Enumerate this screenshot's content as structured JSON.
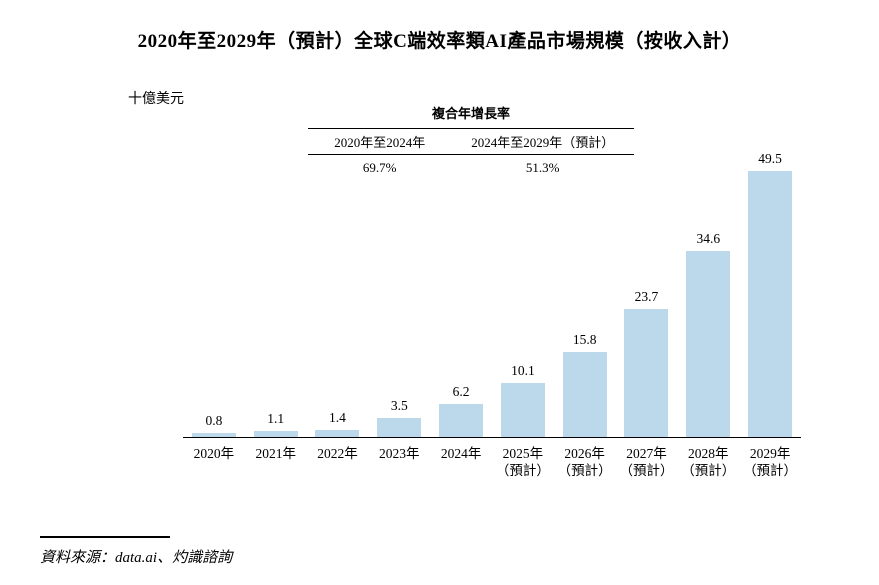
{
  "page": {
    "title": "2020年至2029年（預計）全球C端效率類AI產品市場規模（按收入計）",
    "source": "資料來源：data.ai、灼識諮詢"
  },
  "cagr": {
    "title": "複合年增長率",
    "columns": [
      {
        "period": "2020年至2024年",
        "value": "69.7%"
      },
      {
        "period": "2024年至2029年（預計）",
        "value": "51.3%"
      }
    ]
  },
  "chart_data": {
    "type": "bar",
    "title": "2020年至2029年（預計）全球C端效率類AI產品市場規模（按收入計）",
    "unit_label": "十億美元",
    "xlabel": "",
    "ylabel": "十億美元",
    "categories": [
      "2020年",
      "2021年",
      "2022年",
      "2023年",
      "2024年",
      "2025年（預計）",
      "2026年（預計）",
      "2027年（預計）",
      "2028年（預計）",
      "2029年（預計）"
    ],
    "values": [
      0.8,
      1.1,
      1.4,
      3.5,
      6.2,
      10.1,
      15.8,
      23.7,
      34.6,
      49.5
    ],
    "value_labels": [
      "0.8",
      "1.1",
      "1.4",
      "3.5",
      "6.2",
      "10.1",
      "15.8",
      "23.7",
      "34.6",
      "49.5"
    ],
    "ylim": [
      0,
      52
    ],
    "grid": false,
    "legend": "none",
    "bar_color": "#BCD9EB",
    "annotations": {
      "cagr_title": "複合年增長率",
      "cagr_2020_2024": "69.7%",
      "cagr_2024_2029": "51.3%"
    },
    "source": "資料來源：data.ai、灼識諮詢"
  }
}
